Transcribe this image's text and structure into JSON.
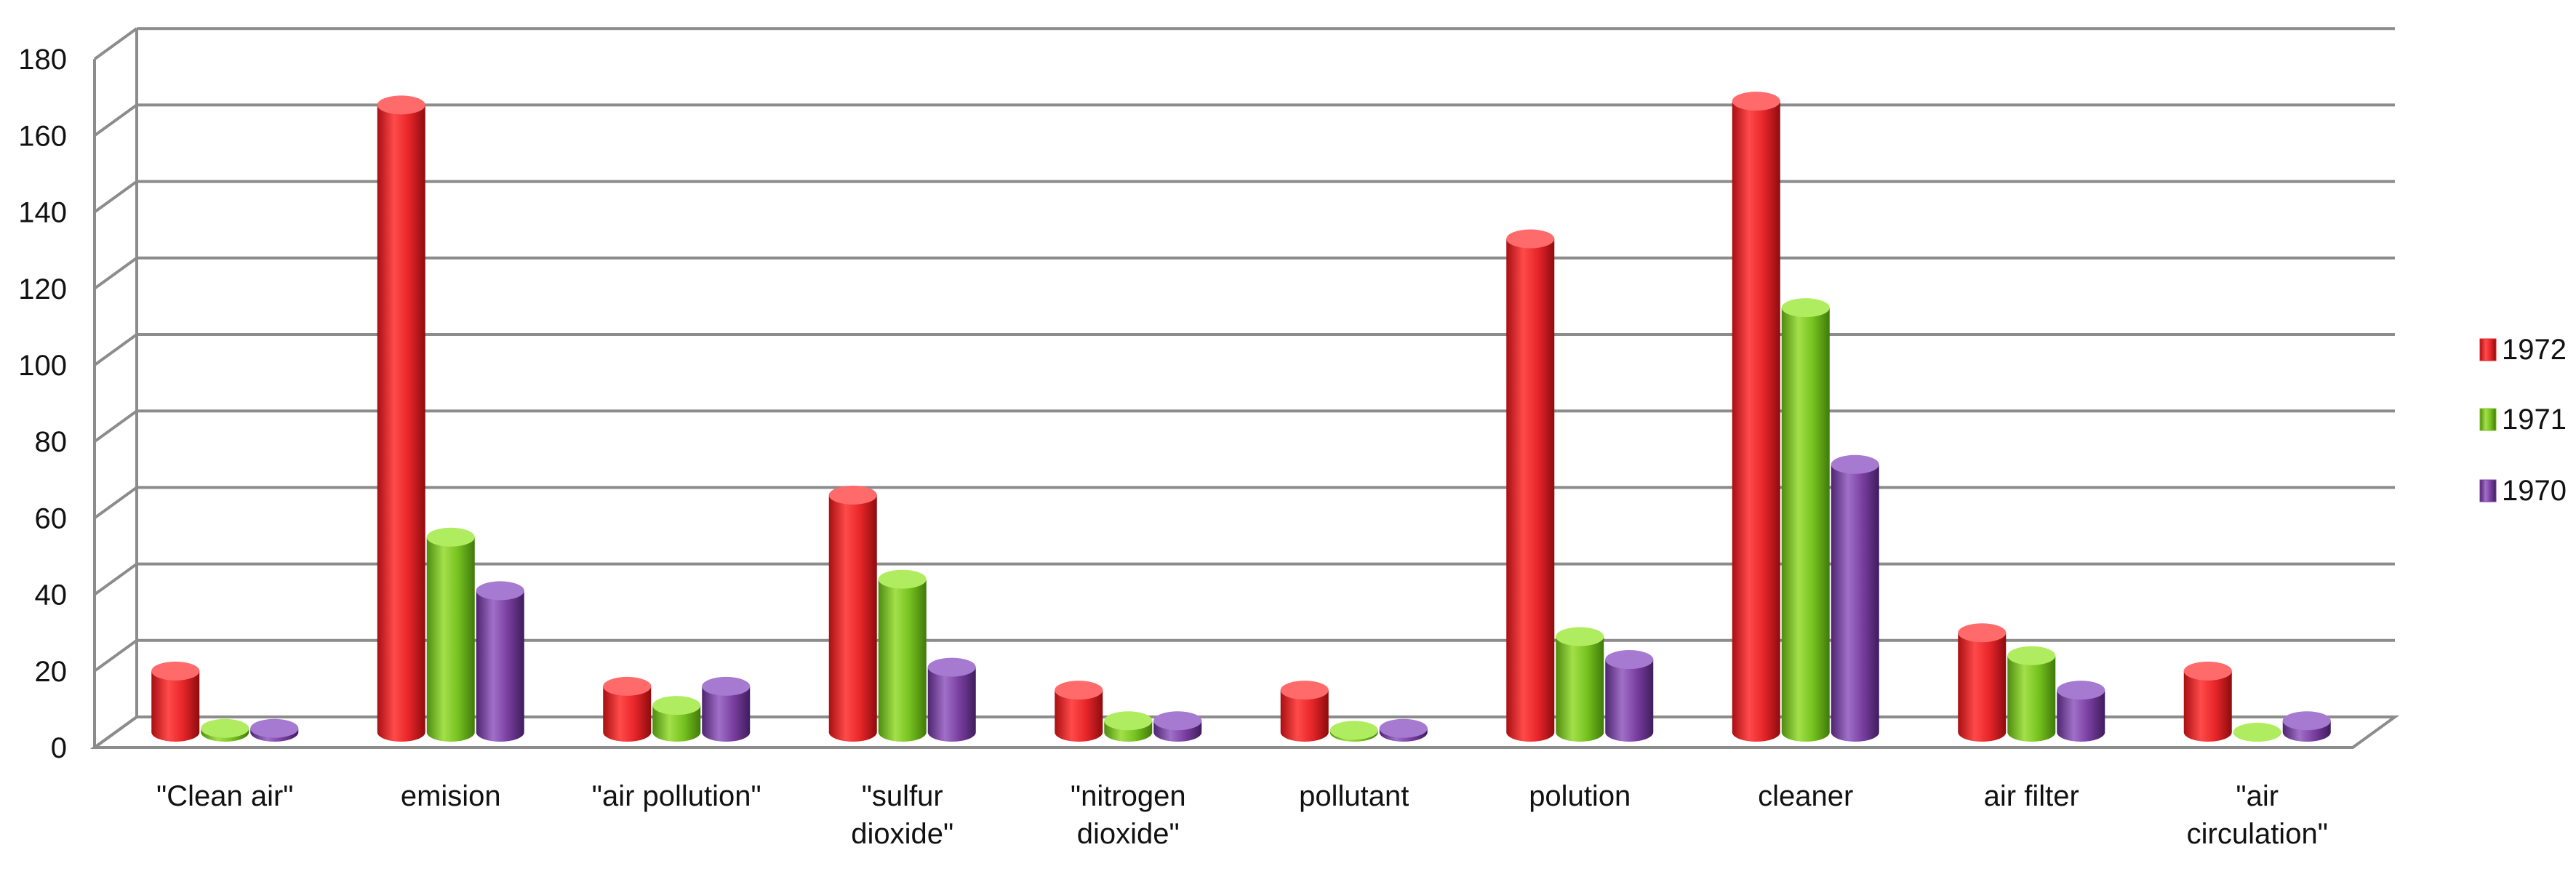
{
  "chart_data": {
    "type": "bar",
    "title": "",
    "xlabel": "",
    "ylabel": "",
    "ylim": [
      0,
      180
    ],
    "yticks": [
      0,
      20,
      40,
      60,
      80,
      100,
      120,
      140,
      160,
      180
    ],
    "grid": true,
    "legend_position": "right",
    "categories": [
      [
        "\"Clean air\""
      ],
      [
        "emision"
      ],
      [
        "\"air pollution\""
      ],
      [
        "\"sulfur",
        "dioxide\""
      ],
      [
        "\"nitrogen",
        "dioxide\""
      ],
      [
        "pollutant"
      ],
      [
        "polution"
      ],
      [
        "cleaner"
      ],
      [
        "air filter"
      ],
      [
        "\"air",
        "circulation\""
      ]
    ],
    "series": [
      {
        "name": "1972",
        "color": "#e8262a",
        "values": [
          16,
          164,
          12,
          62,
          11,
          11,
          129,
          165,
          26,
          16
        ]
      },
      {
        "name": "1971",
        "color": "#76c21f",
        "values": [
          1,
          51,
          7,
          40,
          3,
          0.5,
          25,
          111,
          20,
          0
        ]
      },
      {
        "name": "1970",
        "color": "#7a3fa1",
        "values": [
          1,
          37,
          12,
          17,
          3,
          1,
          19,
          70,
          11,
          3
        ]
      }
    ]
  }
}
